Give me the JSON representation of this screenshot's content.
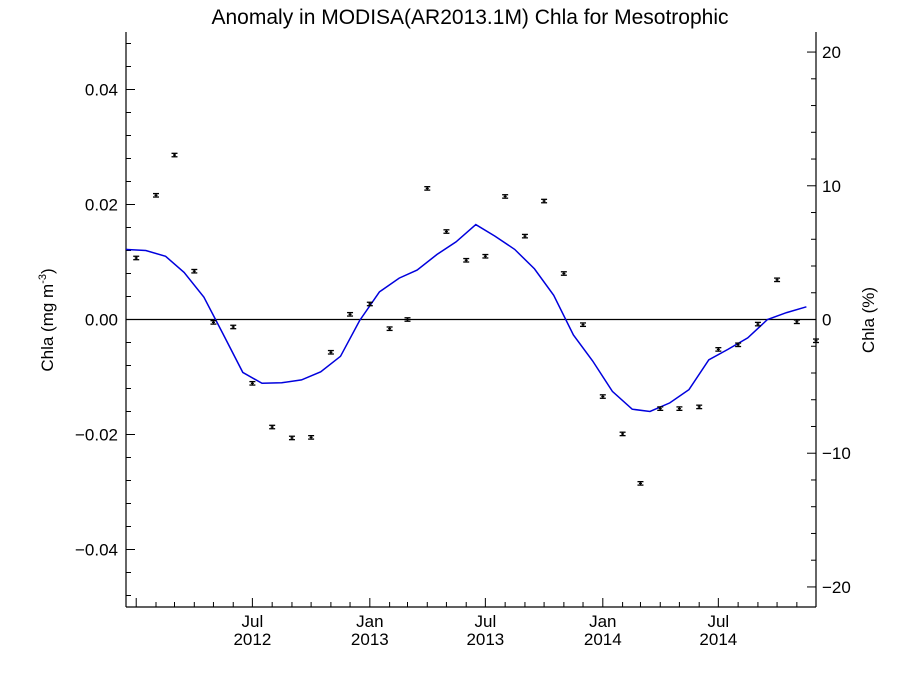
{
  "chart_data": {
    "type": "scatter",
    "title": "Anomaly in MODISA(AR2013.1M) Chla for Mesotrophic",
    "ylabel": "Chla (mg m",
    "ylabel_sup": "-3",
    "ylabel_close": ")",
    "y2label": "Chla (%)",
    "xlim": [
      "2011-12-16",
      "2014-12-01"
    ],
    "ylim": [
      -0.05,
      0.05
    ],
    "y2lim": [
      -21.5,
      21.5
    ],
    "yticks": [
      {
        "value": 0.04,
        "label": "0.04"
      },
      {
        "value": 0.02,
        "label": "0.02"
      },
      {
        "value": 0.0,
        "label": "0.00"
      },
      {
        "value": -0.02,
        "label": "−0.02"
      },
      {
        "value": -0.04,
        "label": "−0.04"
      }
    ],
    "y2ticks": [
      {
        "value": 20,
        "label": "20"
      },
      {
        "value": 10,
        "label": "10"
      },
      {
        "value": 0,
        "label": "0"
      },
      {
        "value": -10,
        "label": "−10"
      },
      {
        "value": -20,
        "label": "−20"
      }
    ],
    "xticks": [
      {
        "date": "2012-07-01",
        "month": "Jul",
        "year": "2012"
      },
      {
        "date": "2013-01-01",
        "month": "Jan",
        "year": "2013"
      },
      {
        "date": "2013-07-01",
        "month": "Jul",
        "year": "2013"
      },
      {
        "date": "2014-01-01",
        "month": "Jan",
        "year": "2014"
      },
      {
        "date": "2014-07-01",
        "month": "Jul",
        "year": "2014"
      }
    ],
    "zero_line": 0.0,
    "points": [
      {
        "x": "2012-01-01",
        "y": 0.0107
      },
      {
        "x": "2012-02-01",
        "y": 0.0216
      },
      {
        "x": "2012-03-01",
        "y": 0.0286
      },
      {
        "x": "2012-04-01",
        "y": 0.0084
      },
      {
        "x": "2012-05-01",
        "y": -0.0005
      },
      {
        "x": "2012-06-01",
        "y": -0.0013
      },
      {
        "x": "2012-07-01",
        "y": -0.0111
      },
      {
        "x": "2012-08-01",
        "y": -0.0187
      },
      {
        "x": "2012-09-01",
        "y": -0.0206
      },
      {
        "x": "2012-10-01",
        "y": -0.0205
      },
      {
        "x": "2012-11-01",
        "y": -0.0057
      },
      {
        "x": "2012-12-01",
        "y": 0.0009
      },
      {
        "x": "2013-01-01",
        "y": 0.0027
      },
      {
        "x": "2013-02-01",
        "y": -0.0016
      },
      {
        "x": "2013-03-01",
        "y": 0.0
      },
      {
        "x": "2013-04-01",
        "y": 0.0228
      },
      {
        "x": "2013-05-01",
        "y": 0.0153
      },
      {
        "x": "2013-06-01",
        "y": 0.0103
      },
      {
        "x": "2013-07-01",
        "y": 0.011
      },
      {
        "x": "2013-08-01",
        "y": 0.0214
      },
      {
        "x": "2013-09-01",
        "y": 0.0145
      },
      {
        "x": "2013-10-01",
        "y": 0.0206
      },
      {
        "x": "2013-11-01",
        "y": 0.008
      },
      {
        "x": "2013-12-01",
        "y": -0.0009
      },
      {
        "x": "2014-01-01",
        "y": -0.0134
      },
      {
        "x": "2014-02-01",
        "y": -0.0199
      },
      {
        "x": "2014-03-01",
        "y": -0.0285
      },
      {
        "x": "2014-04-01",
        "y": -0.0155
      },
      {
        "x": "2014-05-01",
        "y": -0.0155
      },
      {
        "x": "2014-06-01",
        "y": -0.0152
      },
      {
        "x": "2014-07-01",
        "y": -0.0052
      },
      {
        "x": "2014-08-01",
        "y": -0.0044
      },
      {
        "x": "2014-09-01",
        "y": -0.0008
      },
      {
        "x": "2014-10-01",
        "y": 0.0069
      },
      {
        "x": "2014-11-01",
        "y": -0.0004
      },
      {
        "x": "2014-12-01",
        "y": -0.0037
      }
    ],
    "error_bar": 0.0003,
    "smooth": [
      {
        "x": "2011-12-16",
        "y": 0.0122
      },
      {
        "x": "2012-01-16",
        "y": 0.012
      },
      {
        "x": "2012-02-16",
        "y": 0.011
      },
      {
        "x": "2012-03-16",
        "y": 0.0082
      },
      {
        "x": "2012-04-16",
        "y": 0.0039
      },
      {
        "x": "2012-05-16",
        "y": -0.0025
      },
      {
        "x": "2012-06-16",
        "y": -0.0092
      },
      {
        "x": "2012-07-16",
        "y": -0.0111
      },
      {
        "x": "2012-08-16",
        "y": -0.011
      },
      {
        "x": "2012-09-16",
        "y": -0.0105
      },
      {
        "x": "2012-10-16",
        "y": -0.0091
      },
      {
        "x": "2012-11-16",
        "y": -0.0064
      },
      {
        "x": "2012-12-16",
        "y": -0.0002
      },
      {
        "x": "2013-01-16",
        "y": 0.0048
      },
      {
        "x": "2013-02-16",
        "y": 0.0072
      },
      {
        "x": "2013-03-16",
        "y": 0.0086
      },
      {
        "x": "2013-04-16",
        "y": 0.0113
      },
      {
        "x": "2013-05-16",
        "y": 0.0135
      },
      {
        "x": "2013-06-16",
        "y": 0.0165
      },
      {
        "x": "2013-07-16",
        "y": 0.0145
      },
      {
        "x": "2013-08-16",
        "y": 0.0122
      },
      {
        "x": "2013-09-16",
        "y": 0.0088
      },
      {
        "x": "2013-10-16",
        "y": 0.0042
      },
      {
        "x": "2013-11-16",
        "y": -0.0027
      },
      {
        "x": "2013-12-16",
        "y": -0.0072
      },
      {
        "x": "2014-01-16",
        "y": -0.0125
      },
      {
        "x": "2014-02-16",
        "y": -0.0156
      },
      {
        "x": "2014-03-16",
        "y": -0.016
      },
      {
        "x": "2014-04-16",
        "y": -0.0145
      },
      {
        "x": "2014-05-16",
        "y": -0.0122
      },
      {
        "x": "2014-06-16",
        "y": -0.007
      },
      {
        "x": "2014-07-16",
        "y": -0.0052
      },
      {
        "x": "2014-08-16",
        "y": -0.0032
      },
      {
        "x": "2014-09-16",
        "y": 0.0
      },
      {
        "x": "2014-10-16",
        "y": 0.0012
      },
      {
        "x": "2014-11-16",
        "y": 0.0022
      }
    ],
    "line_color": "#0000dd",
    "point_color": "#000000",
    "axis_color": "#000000",
    "grid": false
  }
}
